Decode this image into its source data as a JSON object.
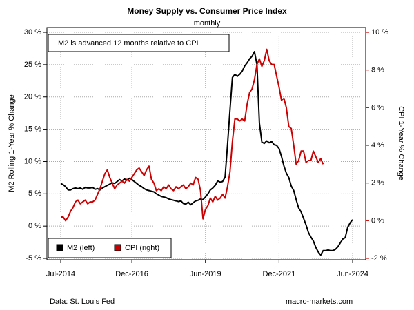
{
  "chart_data": {
    "type": "line",
    "title": "Money Supply vs. Consumer Price Index",
    "subtitle": "monthly",
    "annotation": "M2 is advanced 12 months relative to CPI",
    "ylabel": "M2 Rolling 1-Year % Change",
    "y2label": "CPI 1-Year % Change",
    "source": "Data: St. Louis Fed",
    "credit": "macro-markets.com",
    "grid": true,
    "legend": "bottom-left",
    "x": [
      "Jul-2014",
      "Aug-2014",
      "Sep-2014",
      "Oct-2014",
      "Nov-2014",
      "Dec-2014",
      "Jan-2015",
      "Feb-2015",
      "Mar-2015",
      "Apr-2015",
      "May-2015",
      "Jun-2015",
      "Jul-2015",
      "Aug-2015",
      "Sep-2015",
      "Oct-2015",
      "Nov-2015",
      "Dec-2015",
      "Jan-2016",
      "Feb-2016",
      "Mar-2016",
      "Apr-2016",
      "May-2016",
      "Jun-2016",
      "Jul-2016",
      "Aug-2016",
      "Sep-2016",
      "Oct-2016",
      "Nov-2016",
      "Dec-2016",
      "Jan-2017",
      "Feb-2017",
      "Mar-2017",
      "Apr-2017",
      "May-2017",
      "Jun-2017",
      "Jul-2017",
      "Aug-2017",
      "Sep-2017",
      "Oct-2017",
      "Nov-2017",
      "Dec-2017",
      "Jan-2018",
      "Feb-2018",
      "Mar-2018",
      "Apr-2018",
      "May-2018",
      "Jun-2018",
      "Jul-2018",
      "Aug-2018",
      "Sep-2018",
      "Oct-2018",
      "Nov-2018",
      "Dec-2018",
      "Jan-2019",
      "Feb-2019",
      "Mar-2019",
      "Apr-2019",
      "May-2019",
      "Jun-2019",
      "Jul-2019",
      "Aug-2019",
      "Sep-2019",
      "Oct-2019",
      "Nov-2019",
      "Dec-2019",
      "Jan-2020",
      "Feb-2020",
      "Mar-2020",
      "Apr-2020",
      "May-2020",
      "Jun-2020",
      "Jul-2020",
      "Aug-2020",
      "Sep-2020",
      "Oct-2020",
      "Nov-2020",
      "Dec-2020",
      "Jan-2021",
      "Feb-2021",
      "Mar-2021",
      "Apr-2021",
      "May-2021",
      "Jun-2021",
      "Jul-2021",
      "Aug-2021",
      "Sep-2021",
      "Oct-2021",
      "Nov-2021",
      "Dec-2021",
      "Jan-2022",
      "Feb-2022",
      "Mar-2022",
      "Apr-2022",
      "May-2022",
      "Jun-2022",
      "Jul-2022",
      "Aug-2022",
      "Sep-2022",
      "Oct-2022",
      "Nov-2022",
      "Dec-2022",
      "Jan-2023",
      "Feb-2023",
      "Mar-2023",
      "Apr-2023",
      "May-2023",
      "Jun-2023",
      "Jul-2023",
      "Aug-2023",
      "Sep-2023",
      "Oct-2023",
      "Nov-2023",
      "Dec-2023",
      "Jan-2024",
      "Feb-2024",
      "Mar-2024",
      "Apr-2024",
      "May-2024",
      "Jun-2024"
    ],
    "xticks": [
      "Jul-2014",
      "Dec-2016",
      "Jun-2019",
      "Dec-2021",
      "Jun-2024"
    ],
    "ylim": [
      -5.21,
      30.75
    ],
    "yticks": [
      {
        "value": -5,
        "label": "-5 %"
      },
      {
        "value": 0,
        "label": "0 %"
      },
      {
        "value": 5,
        "label": "5 %"
      },
      {
        "value": 10,
        "label": "10 %"
      },
      {
        "value": 15,
        "label": "15 %"
      },
      {
        "value": 20,
        "label": "20 %"
      },
      {
        "value": 25,
        "label": "25 %"
      },
      {
        "value": 30,
        "label": "30 %"
      }
    ],
    "y2lim": [
      -2.07,
      10.26
    ],
    "y2ticks": [
      {
        "value": -2,
        "label": "-2 %"
      },
      {
        "value": 0,
        "label": "0 %"
      },
      {
        "value": 2,
        "label": "2 %"
      },
      {
        "value": 4,
        "label": "4 %"
      },
      {
        "value": 6,
        "label": "6 %"
      },
      {
        "value": 8,
        "label": "8 %"
      },
      {
        "value": 10,
        "label": "10 %"
      }
    ],
    "y2color": "#cc0000",
    "series": [
      {
        "name": "M2 (left)",
        "color": "#000000",
        "axis": "y",
        "values": [
          6.6,
          6.4,
          6.1,
          5.6,
          5.6,
          5.8,
          5.9,
          5.8,
          5.9,
          5.7,
          6.0,
          5.9,
          5.9,
          6.0,
          5.7,
          5.8,
          5.6,
          5.9,
          6.1,
          6.3,
          6.5,
          6.7,
          6.6,
          6.9,
          7.2,
          7.0,
          7.3,
          7.1,
          7.4,
          7.2,
          6.9,
          6.6,
          6.3,
          6.1,
          5.8,
          5.6,
          5.5,
          5.4,
          5.3,
          5.0,
          4.8,
          4.6,
          4.5,
          4.4,
          4.2,
          4.1,
          4.0,
          3.9,
          3.8,
          3.9,
          3.5,
          3.4,
          3.7,
          3.3,
          3.6,
          3.9,
          4.0,
          4.2,
          4.1,
          4.5,
          5.0,
          5.6,
          5.9,
          6.3,
          7.0,
          6.8,
          6.9,
          7.6,
          12.5,
          18.0,
          23.0,
          23.5,
          23.2,
          23.5,
          24.0,
          24.8,
          25.3,
          25.9,
          26.3,
          27.0,
          25.0,
          16.0,
          13.0,
          12.8,
          13.2,
          12.9,
          13.1,
          12.6,
          12.5,
          12.0,
          10.8,
          9.3,
          8.2,
          7.5,
          6.2,
          5.5,
          4.1,
          2.8,
          2.2,
          1.2,
          0.2,
          -1.0,
          -1.7,
          -2.3,
          -3.3,
          -4.0,
          -4.5,
          -3.8,
          -3.8,
          -3.7,
          -3.8,
          -3.8,
          -3.6,
          -3.2,
          -2.6,
          -2.0,
          -1.8,
          -0.2,
          0.5,
          1.0
        ]
      },
      {
        "name": "CPI (right)",
        "color": "#cc0000",
        "axis": "y2",
        "values": [
          0.2,
          0.2,
          0.0,
          0.2,
          0.5,
          0.7,
          1.0,
          1.1,
          0.9,
          1.0,
          1.1,
          0.9,
          1.0,
          1.0,
          1.1,
          1.4,
          1.7,
          2.1,
          2.5,
          2.7,
          2.3,
          2.0,
          1.7,
          1.9,
          2.0,
          2.1,
          2.0,
          2.2,
          2.1,
          2.3,
          2.5,
          2.7,
          2.8,
          2.6,
          2.4,
          2.7,
          2.9,
          2.2,
          2.0,
          1.6,
          1.7,
          1.6,
          1.8,
          1.7,
          1.9,
          1.7,
          1.6,
          1.8,
          1.7,
          1.8,
          1.9,
          1.7,
          1.8,
          2.0,
          1.9,
          2.3,
          2.2,
          1.6,
          0.1,
          0.6,
          0.8,
          1.2,
          1.0,
          1.3,
          1.1,
          1.2,
          1.4,
          1.2,
          1.8,
          2.6,
          4.2,
          5.4,
          5.4,
          5.3,
          5.4,
          5.3,
          6.2,
          6.8,
          7.0,
          7.5,
          8.3,
          8.6,
          8.2,
          8.5,
          9.1,
          8.5,
          8.3,
          8.3,
          7.7,
          7.1,
          6.4,
          6.5,
          6.0,
          5.0,
          4.9,
          4.0,
          3.0,
          3.2,
          3.7,
          3.7,
          3.1,
          3.2,
          3.2,
          3.7,
          3.4,
          3.1,
          3.3,
          3.0,
          null,
          null,
          null,
          null,
          null,
          null,
          null,
          null,
          null,
          null,
          null,
          null
        ]
      }
    ]
  }
}
